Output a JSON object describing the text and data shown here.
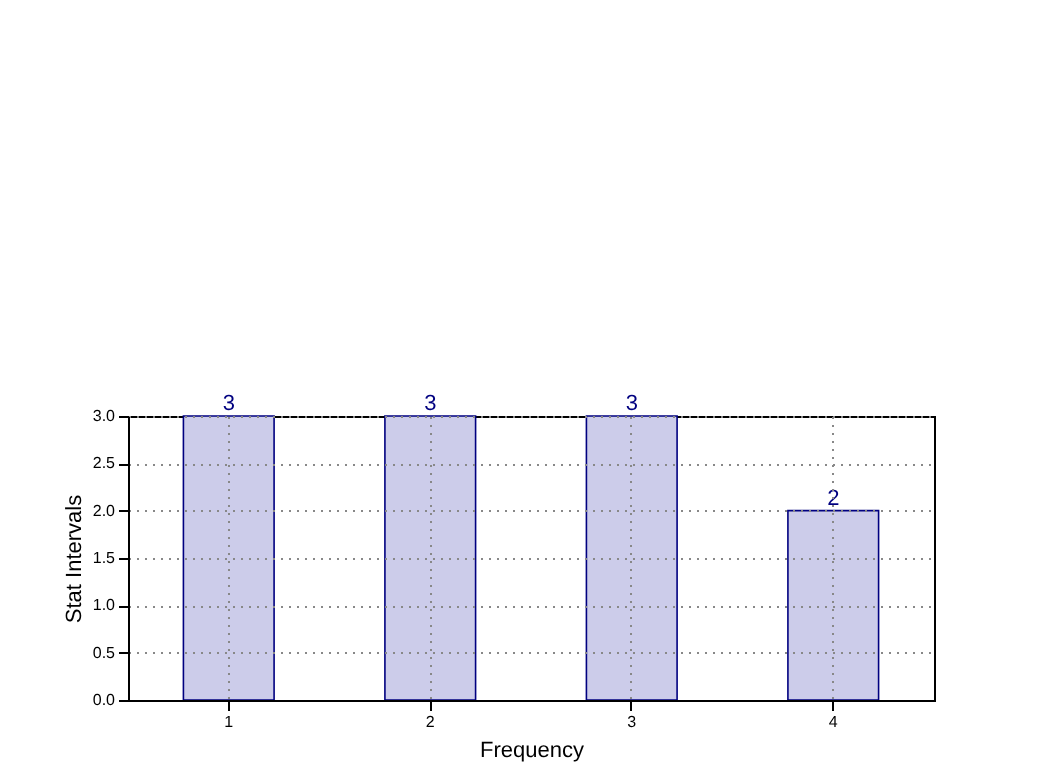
{
  "chart_data": {
    "type": "bar",
    "xlabel": "Frequency",
    "ylabel": "Stat Intervals",
    "categories": [
      "1",
      "2",
      "3",
      "4"
    ],
    "values": [
      3,
      3,
      3,
      2
    ],
    "color": "#ccccea",
    "ylim": [
      0,
      3
    ],
    "yticks": [
      {
        "value": 0,
        "label": "0.0"
      },
      0.5,
      {
        "value": 1,
        "label": "1.0"
      },
      1.5,
      {
        "value": 2,
        "label": "2.0"
      },
      2.5,
      {
        "value": 3,
        "label": "3.0"
      }
    ],
    "grid": true,
    "data_labels": true
  }
}
